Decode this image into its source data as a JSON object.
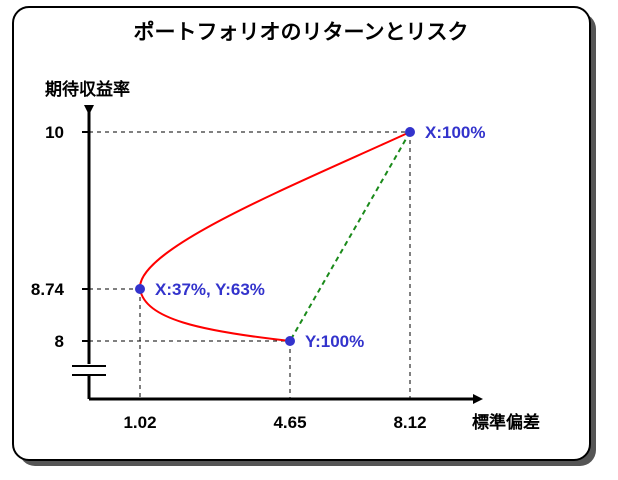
{
  "chart_data": {
    "type": "line",
    "title": "ポートフォリオのリターンとリスク",
    "xlabel": "標準偏差",
    "ylabel": "期待収益率",
    "x_ticks": [
      "1.02",
      "4.65",
      "8.12"
    ],
    "y_ticks": [
      "8",
      "8.74",
      "10"
    ],
    "y_axis_break": true,
    "colors": {
      "frontier": "#ff0000",
      "straight_line": "#1a8a1a",
      "points": "#3333cc",
      "guides": "#000000"
    },
    "frontier_curve": [
      {
        "x": 8.12,
        "y": 10
      },
      {
        "x": 1.02,
        "y": 8.74
      },
      {
        "x": 4.65,
        "y": 8
      }
    ],
    "points": [
      {
        "x": 8.12,
        "y": 10,
        "label": "X:100%"
      },
      {
        "x": 1.02,
        "y": 8.74,
        "label": "X:37%, Y:63%"
      },
      {
        "x": 4.65,
        "y": 8,
        "label": "Y:100%"
      }
    ]
  }
}
